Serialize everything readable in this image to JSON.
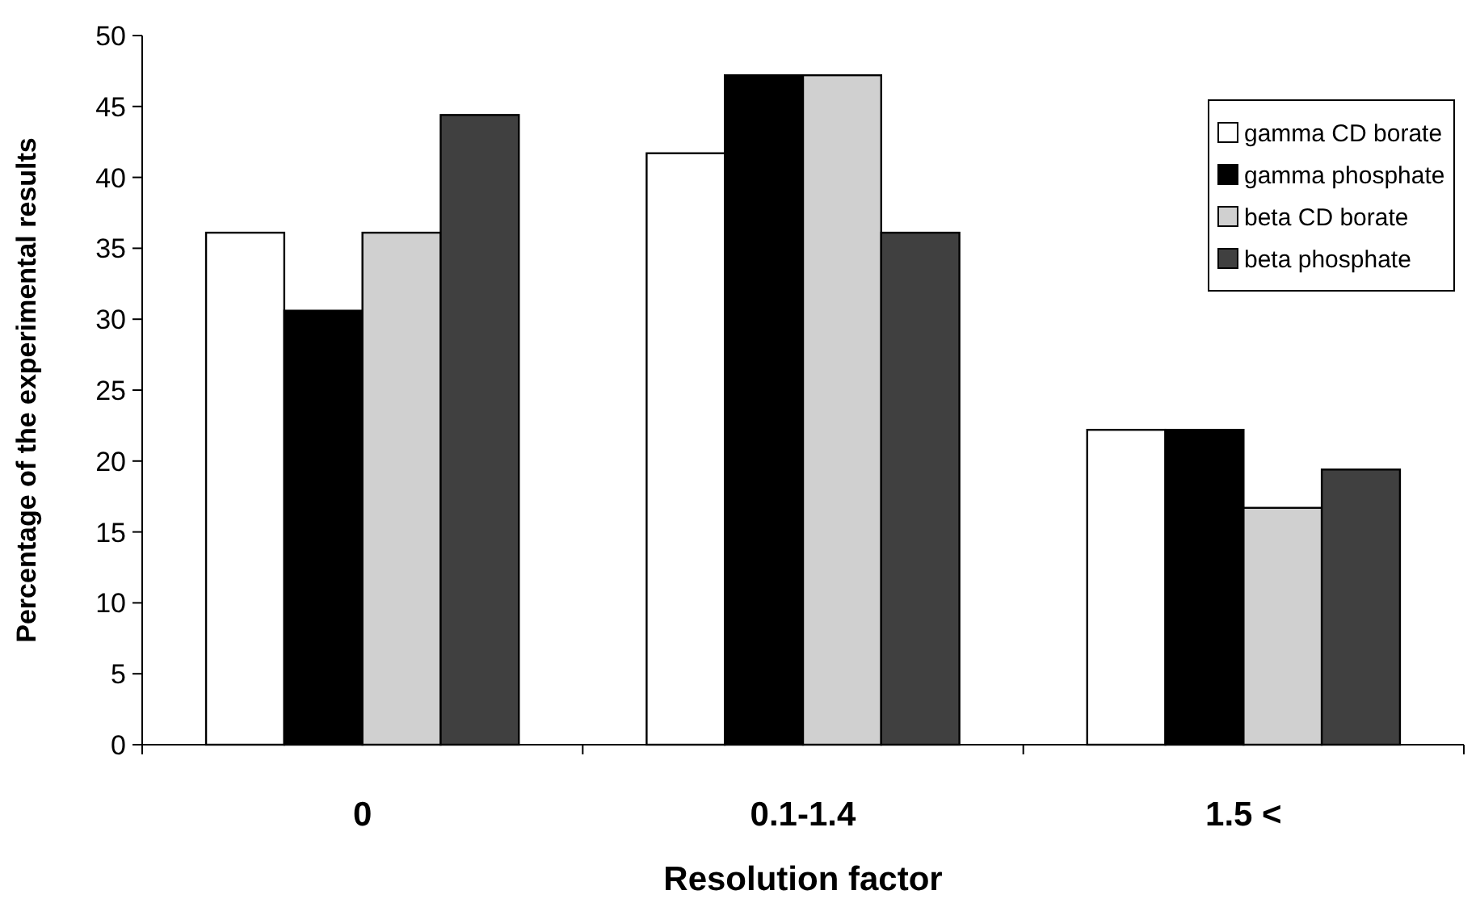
{
  "chart_data": {
    "type": "bar",
    "xlabel": "Resolution factor",
    "ylabel": "Percentage of the experimental results",
    "categories": [
      "0",
      "0.1-1.4",
      "1.5 <"
    ],
    "series": [
      {
        "name": "gamma CD borate",
        "color": "#ffffff",
        "values": [
          36.1,
          41.7,
          22.2
        ]
      },
      {
        "name": "gamma phosphate",
        "color": "#000000",
        "values": [
          30.6,
          47.2,
          22.2
        ]
      },
      {
        "name": "beta CD borate",
        "color": "#d0d0d0",
        "values": [
          36.1,
          47.2,
          16.7
        ]
      },
      {
        "name": "beta phosphate",
        "color": "#404040",
        "values": [
          44.4,
          36.1,
          19.4
        ]
      }
    ],
    "ylim": [
      0,
      50
    ],
    "yticks": [
      0,
      5,
      10,
      15,
      20,
      25,
      30,
      35,
      40,
      45,
      50
    ],
    "grid": false,
    "legend": "top right"
  }
}
